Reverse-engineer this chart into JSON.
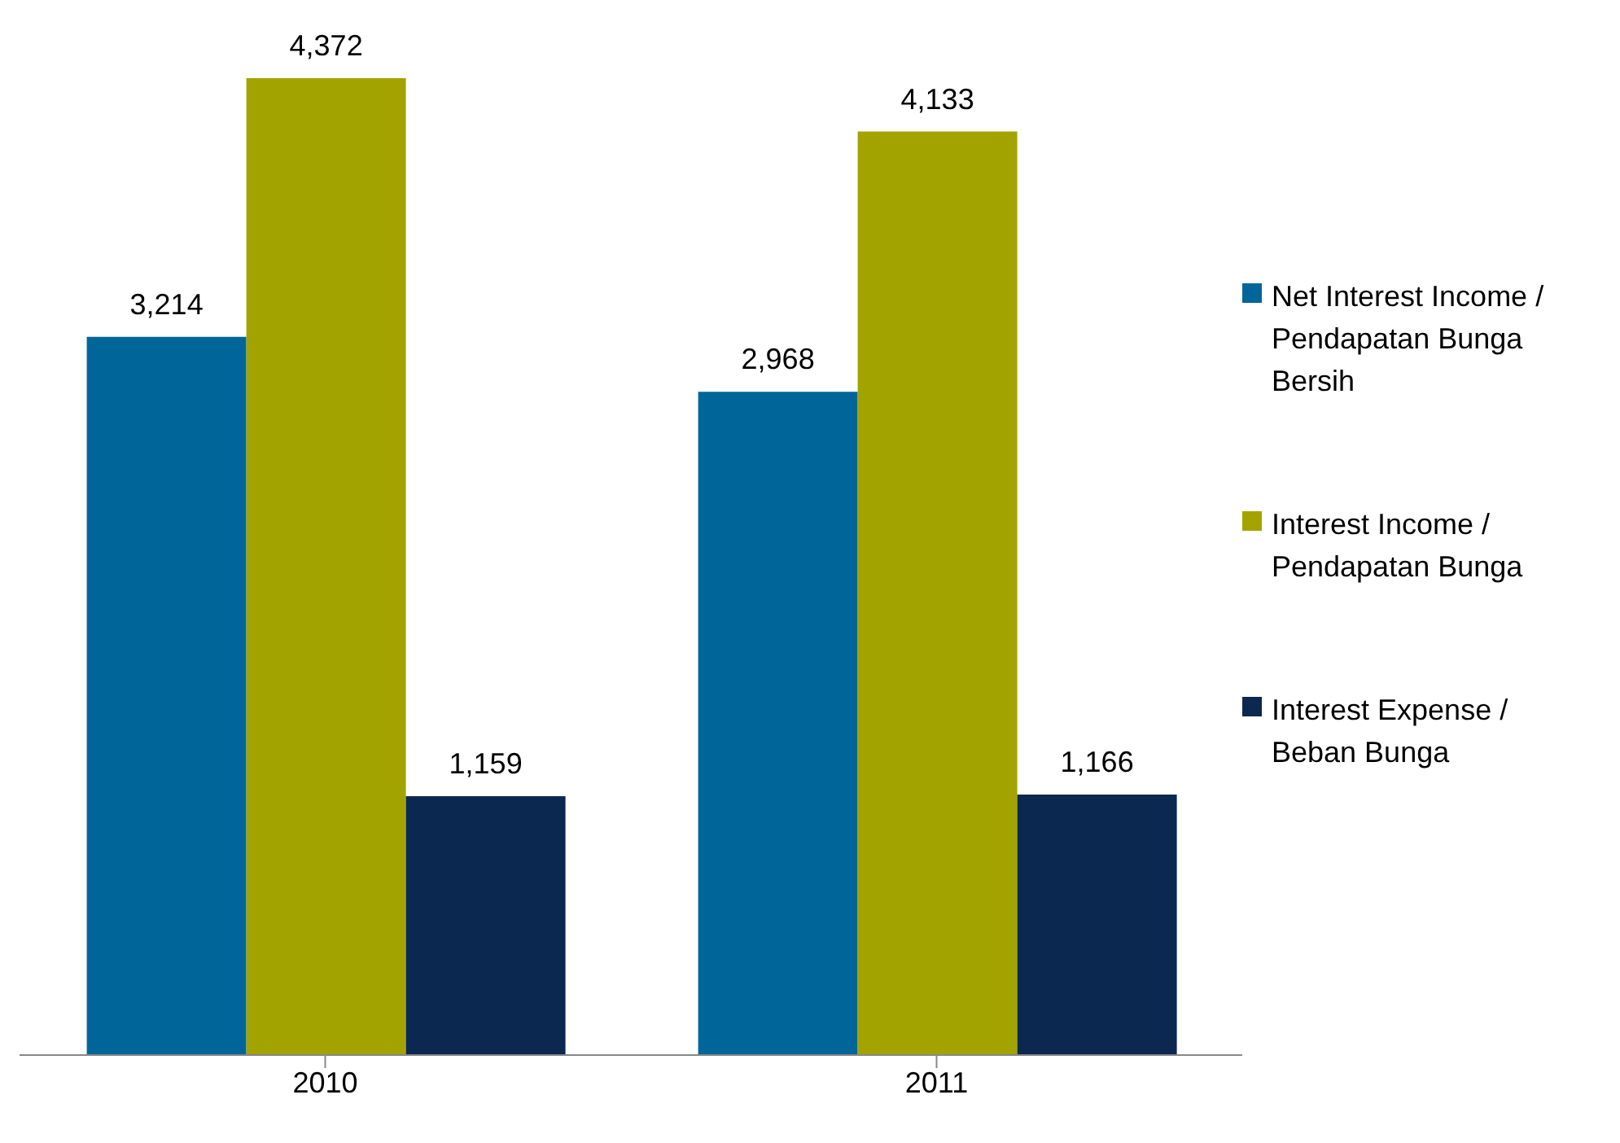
{
  "chart_data": {
    "type": "bar",
    "categories": [
      "2010",
      "2011"
    ],
    "series": [
      {
        "name": "Net Interest Income / Pendapatan Bunga Bersih",
        "color": "#006699",
        "values": [
          3214,
          2968
        ],
        "value_labels": [
          "3,214",
          "2,968"
        ]
      },
      {
        "name": "Interest Income / Pendapatan Bunga",
        "color": "#a3a300",
        "values": [
          4372,
          4133
        ],
        "value_labels": [
          "4,372",
          "4,133"
        ]
      },
      {
        "name": "Interest Expense / Beban Bunga",
        "color": "#0a2850",
        "values": [
          1159,
          1166
        ],
        "value_labels": [
          "1,159",
          "1,166"
        ]
      }
    ],
    "grid": false,
    "legend": "right"
  }
}
